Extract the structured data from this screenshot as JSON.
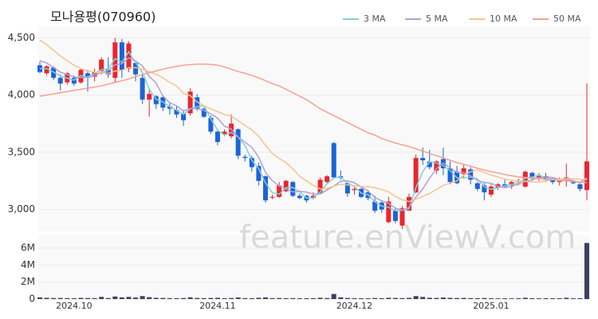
{
  "chart_data": [
    {
      "type": "candlestick",
      "title": "모나용평(070960)",
      "watermark": "feature.enViewV.com",
      "up_color": "#e8262f",
      "down_color": "#1d63d8",
      "open": [
        4260,
        4190,
        4240,
        4150,
        4110,
        4150,
        4110,
        4190,
        4160,
        4210,
        4220,
        4150,
        4460,
        4230,
        4280,
        4150,
        3960,
        3990,
        3980,
        3900,
        3870,
        3840,
        3840,
        3980,
        3880,
        3800,
        3680,
        3660,
        3640,
        3700,
        3460,
        3450,
        3380,
        3290,
        3110,
        3110,
        3160,
        3240,
        3120,
        3120,
        3100,
        3140,
        3240,
        3580,
        3290,
        3230,
        3170,
        3180,
        3150,
        3070,
        3060,
        2890,
        2990,
        2860,
        2990,
        3150,
        3450,
        3420,
        3340,
        3440,
        3360,
        3330,
        3310,
        3350,
        3230,
        3210,
        3130,
        3190,
        3220,
        3210,
        3240,
        3200,
        3320,
        3270,
        3290,
        3270,
        3240,
        3260,
        3240,
        3220,
        3170
      ],
      "high": [
        4290,
        4260,
        4250,
        4180,
        4200,
        4170,
        4230,
        4220,
        4230,
        4330,
        4330,
        4500,
        4490,
        4470,
        4300,
        4180,
        4060,
        4000,
        4000,
        3940,
        3900,
        3870,
        4060,
        4010,
        3890,
        3820,
        3690,
        3700,
        3830,
        3710,
        3480,
        3470,
        3410,
        3300,
        3130,
        3240,
        3260,
        3250,
        3140,
        3130,
        3150,
        3280,
        3300,
        3590,
        3340,
        3240,
        3200,
        3190,
        3170,
        3120,
        3080,
        3110,
        3010,
        3030,
        3140,
        3480,
        3540,
        3520,
        3430,
        3540,
        3420,
        3380,
        3390,
        3370,
        3240,
        3240,
        3220,
        3230,
        3260,
        3250,
        3270,
        3340,
        3330,
        3320,
        3320,
        3280,
        3280,
        3400,
        3260,
        3230,
        4100
      ],
      "low": [
        4190,
        4170,
        4130,
        4040,
        4090,
        4080,
        4100,
        4030,
        4120,
        4180,
        4150,
        4110,
        4150,
        4200,
        4120,
        3920,
        3810,
        3880,
        3860,
        3830,
        3800,
        3730,
        3820,
        3860,
        3800,
        3660,
        3560,
        3640,
        3620,
        3440,
        3420,
        3330,
        3210,
        3060,
        3090,
        3100,
        3150,
        3110,
        3090,
        3060,
        3090,
        3130,
        3230,
        3270,
        3260,
        3110,
        3130,
        3100,
        3080,
        2970,
        2970,
        2880,
        2880,
        2830,
        2990,
        3140,
        3390,
        3350,
        3310,
        3300,
        3220,
        3220,
        3270,
        3220,
        3160,
        3080,
        3110,
        3170,
        3190,
        3180,
        3210,
        3190,
        3250,
        3250,
        3240,
        3220,
        3210,
        3200,
        3220,
        3160,
        3080
      ],
      "close": [
        4200,
        4250,
        4150,
        4100,
        4190,
        4100,
        4220,
        4150,
        4200,
        4310,
        4180,
        4460,
        4220,
        4450,
        4180,
        3960,
        4010,
        3920,
        3890,
        3880,
        3830,
        3780,
        4030,
        3880,
        3810,
        3680,
        3590,
        3680,
        3750,
        3470,
        3450,
        3370,
        3250,
        3080,
        3110,
        3210,
        3250,
        3120,
        3100,
        3080,
        3120,
        3260,
        3290,
        3280,
        3280,
        3140,
        3180,
        3110,
        3100,
        2990,
        3000,
        3070,
        2900,
        3010,
        3110,
        3450,
        3430,
        3370,
        3420,
        3360,
        3240,
        3230,
        3360,
        3260,
        3180,
        3150,
        3200,
        3220,
        3200,
        3240,
        3250,
        3330,
        3270,
        3300,
        3260,
        3240,
        3250,
        3280,
        3230,
        3180,
        3420
      ],
      "series": [
        {
          "name": "3 MA",
          "color": "#7dd3d8",
          "values": [
            4230,
            4230,
            4200,
            4167,
            4147,
            4130,
            4170,
            4157,
            4190,
            4220,
            4230,
            4317,
            4287,
            4377,
            4283,
            4197,
            4050,
            3963,
            3940,
            3897,
            3867,
            3830,
            3880,
            3897,
            3907,
            3790,
            3693,
            3650,
            3673,
            3633,
            3557,
            3430,
            3357,
            3233,
            3147,
            3133,
            3190,
            3193,
            3157,
            3100,
            3100,
            3153,
            3223,
            3277,
            3283,
            3233,
            3200,
            3143,
            3130,
            3067,
            3030,
            3020,
            2990,
            2993,
            3007,
            3190,
            3330,
            3417,
            3407,
            3383,
            3340,
            3277,
            3277,
            3283,
            3267,
            3197,
            3177,
            3190,
            3207,
            3220,
            3230,
            3273,
            3283,
            3300,
            3277,
            3267,
            3250,
            3257,
            3253,
            3230,
            3277
          ]
        },
        {
          "name": "5 MA",
          "color": "#b39fd6",
          "values": [
            4300,
            4280,
            4240,
            4200,
            4178,
            4158,
            4152,
            4152,
            4172,
            4196,
            4212,
            4264,
            4274,
            4324,
            4298,
            4254,
            4164,
            4104,
            3992,
            3932,
            3906,
            3860,
            3882,
            3880,
            3866,
            3836,
            3798,
            3728,
            3702,
            3634,
            3588,
            3544,
            3458,
            3324,
            3252,
            3204,
            3180,
            3154,
            3158,
            3152,
            3134,
            3136,
            3170,
            3206,
            3246,
            3250,
            3234,
            3198,
            3162,
            3104,
            3076,
            3054,
            3012,
            2994,
            3018,
            3108,
            3180,
            3274,
            3356,
            3406,
            3364,
            3324,
            3322,
            3294,
            3254,
            3236,
            3230,
            3202,
            3190,
            3202,
            3222,
            3248,
            3258,
            3278,
            3282,
            3280,
            3264,
            3266,
            3252,
            3236,
            3272
          ]
        },
        {
          "name": "10 MA",
          "color": "#f4c48e",
          "values": [
            4480,
            4440,
            4390,
            4340,
            4300,
            4260,
            4230,
            4210,
            4200,
            4195,
            4190,
            4210,
            4215,
            4240,
            4240,
            4225,
            4205,
            4180,
            4150,
            4110,
            4080,
            4015,
            3995,
            3940,
            3905,
            3880,
            3855,
            3830,
            3815,
            3775,
            3735,
            3695,
            3640,
            3560,
            3490,
            3445,
            3410,
            3355,
            3290,
            3250,
            3210,
            3180,
            3185,
            3205,
            3220,
            3215,
            3210,
            3200,
            3200,
            3190,
            3175,
            3155,
            3115,
            3085,
            3070,
            3090,
            3115,
            3140,
            3175,
            3210,
            3230,
            3250,
            3300,
            3330,
            3345,
            3325,
            3300,
            3285,
            3265,
            3255,
            3245,
            3245,
            3240,
            3240,
            3250,
            3260,
            3265,
            3270,
            3270,
            3265,
            3260
          ]
        },
        {
          "name": "50 MA",
          "color": "#f5a090",
          "values": [
            3990,
            4000,
            4010,
            4020,
            4030,
            4040,
            4050,
            4060,
            4070,
            4080,
            4095,
            4110,
            4125,
            4140,
            4160,
            4180,
            4195,
            4210,
            4225,
            4240,
            4250,
            4260,
            4265,
            4270,
            4270,
            4268,
            4260,
            4245,
            4225,
            4205,
            4190,
            4170,
            4150,
            4125,
            4100,
            4080,
            4050,
            4020,
            3990,
            3960,
            3920,
            3880,
            3850,
            3820,
            3790,
            3760,
            3730,
            3700,
            3670,
            3650,
            3620,
            3600,
            3580,
            3565,
            3550,
            3530,
            3510,
            3490,
            3470,
            3450,
            3430,
            3410,
            3395,
            3380,
            3360,
            3345,
            3330,
            3320,
            3305,
            3295,
            3285,
            3280,
            3275,
            3270,
            3265,
            3260,
            3255,
            3250,
            3245,
            3240,
            3235
          ]
        }
      ],
      "ylim": [
        2810,
        4600
      ],
      "yticks": [
        {
          "value": 3000,
          "label": "3,000"
        },
        {
          "value": 3500,
          "label": "3,500"
        },
        {
          "value": 4000,
          "label": "4,000"
        },
        {
          "value": 4500,
          "label": "4,500"
        }
      ],
      "grid": true
    },
    {
      "type": "bar",
      "color": "#3b4060",
      "categories": [
        null,
        null,
        null,
        null,
        null,
        "2024.10",
        null,
        null,
        null,
        null,
        null,
        null,
        null,
        null,
        null,
        null,
        null,
        null,
        null,
        null,
        null,
        null,
        null,
        null,
        null,
        null,
        "2024.11",
        null,
        null,
        null,
        null,
        null,
        null,
        null,
        null,
        null,
        null,
        null,
        null,
        null,
        null,
        null,
        null,
        null,
        null,
        null,
        "2024.12",
        null,
        null,
        null,
        null,
        null,
        null,
        null,
        null,
        null,
        null,
        null,
        null,
        null,
        null,
        null,
        null,
        null,
        null,
        null,
        "2025.01",
        null,
        null,
        null,
        null,
        null,
        null,
        null,
        null,
        null,
        null,
        null,
        null,
        null,
        null
      ],
      "values": [
        200000,
        150000,
        120000,
        130000,
        110000,
        100000,
        140000,
        120000,
        110000,
        250000,
        120000,
        300000,
        200000,
        250000,
        180000,
        350000,
        220000,
        150000,
        130000,
        110000,
        100000,
        120000,
        200000,
        130000,
        110000,
        130000,
        150000,
        100000,
        120000,
        180000,
        110000,
        100000,
        150000,
        200000,
        110000,
        120000,
        100000,
        110000,
        90000,
        100000,
        100000,
        150000,
        120000,
        600000,
        200000,
        130000,
        100000,
        100000,
        90000,
        120000,
        100000,
        150000,
        130000,
        110000,
        140000,
        350000,
        250000,
        150000,
        130000,
        180000,
        140000,
        120000,
        130000,
        110000,
        100000,
        120000,
        90000,
        80000,
        90000,
        80000,
        90000,
        150000,
        100000,
        90000,
        100000,
        90000,
        90000,
        150000,
        90000,
        100000,
        6600000
      ],
      "ylim": [
        0,
        7500000
      ],
      "yticks": [
        0,
        {
          "value": 2000000,
          "label": "2M"
        },
        {
          "value": 4000000,
          "label": "4M"
        },
        {
          "value": 6000000,
          "label": "6M"
        }
      ]
    }
  ]
}
